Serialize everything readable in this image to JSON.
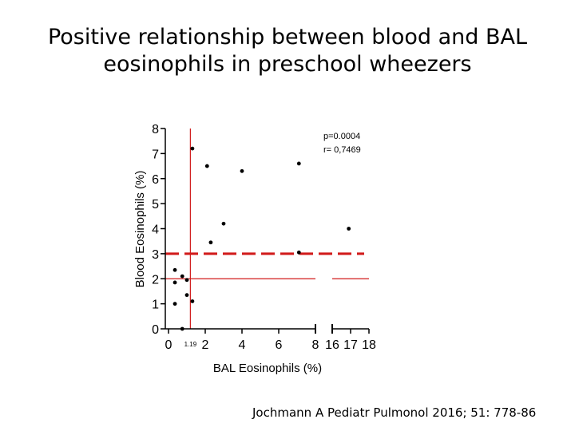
{
  "slide": {
    "title_line1": "Positive relationship between blood and BAL",
    "title_line2": "eosinophils in preschool wheezers",
    "citation": "Jochmann A Pediatr Pulmonol 2016; 51: 778-86"
  },
  "chart_data": {
    "type": "scatter",
    "title": "",
    "xlabel": "BAL Eosinophils (%)",
    "ylabel": "Blood Eosinophils (%)",
    "ylim": [
      0,
      8
    ],
    "x_segments": [
      {
        "range": [
          0,
          8
        ],
        "ticks": [
          "0",
          "2",
          "4",
          "6",
          "8"
        ]
      },
      {
        "range": [
          16,
          18
        ],
        "ticks": [
          "16",
          "17",
          "18"
        ]
      }
    ],
    "y_ticks": [
      "0",
      "1",
      "2",
      "3",
      "4",
      "5",
      "6",
      "7",
      "8"
    ],
    "x_cutoff": 1.19,
    "x_cutoff_label": "1.19",
    "y_cutoff": 2,
    "y_reference": 3,
    "annotations": {
      "p_value": "p=0.0004",
      "r_value": "r= 0,7469"
    },
    "points": [
      {
        "x": 0.35,
        "y": 2.35
      },
      {
        "x": 0.35,
        "y": 1.85
      },
      {
        "x": 0.35,
        "y": 1.0
      },
      {
        "x": 0.75,
        "y": 2.1
      },
      {
        "x": 0.75,
        "y": 0.0
      },
      {
        "x": 1.0,
        "y": 1.95
      },
      {
        "x": 1.0,
        "y": 1.35
      },
      {
        "x": 1.3,
        "y": 1.1
      },
      {
        "x": 1.3,
        "y": 7.2
      },
      {
        "x": 2.1,
        "y": 6.5
      },
      {
        "x": 2.3,
        "y": 3.45
      },
      {
        "x": 3.0,
        "y": 4.2
      },
      {
        "x": 4.0,
        "y": 6.3
      },
      {
        "x": 7.1,
        "y": 6.6
      },
      {
        "x": 7.1,
        "y": 3.05
      },
      {
        "x": 16.9,
        "y": 4.0
      }
    ]
  }
}
